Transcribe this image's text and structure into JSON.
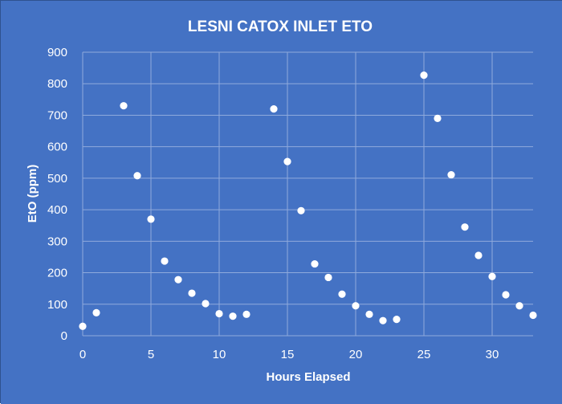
{
  "chart_data": {
    "type": "scatter",
    "title": "LESNI CATOX INLET ETO",
    "xlabel": "Hours Elapsed",
    "ylabel": "EtO (ppm)",
    "xlim": [
      0,
      33
    ],
    "ylim": [
      0,
      900
    ],
    "xticks": [
      0,
      5,
      10,
      15,
      20,
      25,
      30
    ],
    "yticks": [
      0,
      100,
      200,
      300,
      400,
      500,
      600,
      700,
      800,
      900
    ],
    "grid": true,
    "legend": "none",
    "colors": {
      "background": "#4472c4",
      "plot_area": "#4472c4",
      "gridline": "#8faadc",
      "marker": "#ffffff",
      "text": "#ffffff"
    },
    "series": [
      {
        "x": [
          0,
          1,
          3,
          4,
          5,
          6,
          7,
          8,
          9,
          10,
          11,
          12,
          14,
          15,
          16,
          17,
          18,
          19,
          20,
          21,
          22,
          23,
          25,
          26,
          27,
          28,
          29,
          30,
          31,
          32,
          33
        ],
        "y": [
          30,
          73,
          730,
          508,
          370,
          237,
          178,
          135,
          102,
          70,
          62,
          68,
          720,
          553,
          397,
          228,
          185,
          132,
          95,
          68,
          48,
          52,
          827,
          690,
          511,
          345,
          255,
          188,
          130,
          95,
          65
        ]
      }
    ]
  }
}
